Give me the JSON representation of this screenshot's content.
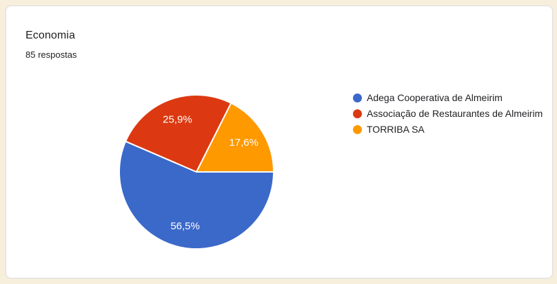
{
  "card": {
    "title": "Economia",
    "subtitle": "85 respostas"
  },
  "theme": {
    "page_background": "#F7EEDC",
    "card_background": "#FFFFFF",
    "card_border": "#DADCE0",
    "title_color": "#202124",
    "slice_label_color": "#FFFFFF",
    "slice_separator_color": "#FFFFFF"
  },
  "chart_data": {
    "type": "pie",
    "title": "Economia",
    "subtitle": "85 respostas",
    "total_responses_text": "85 respostas",
    "legend_position": "right",
    "start_angle_deg": 0,
    "direction": "clockwise",
    "slices": [
      {
        "label": "Adega Cooperativa de Almeirim",
        "percent": 56.5,
        "display": "56,5%",
        "color": "#3B69C9"
      },
      {
        "label": "Associação de Restaurantes de Almeirim",
        "percent": 25.9,
        "display": "25,9%",
        "color": "#DC3912"
      },
      {
        "label": "TORRIBA SA",
        "percent": 17.6,
        "display": "17,6%",
        "color": "#FF9900"
      }
    ]
  }
}
